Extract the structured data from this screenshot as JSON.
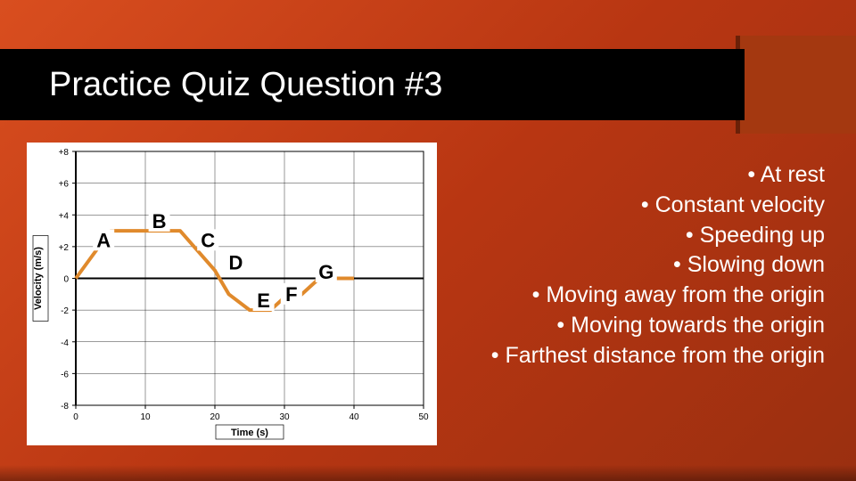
{
  "slide": {
    "title": "Practice Quiz Question #3",
    "background_gradient": [
      "#d94e1f",
      "#b83612",
      "#9a2f10"
    ],
    "accent_box_color": "#a43810",
    "title_bar_color": "#000000",
    "title_color": "#ffffff",
    "title_fontsize": 38
  },
  "chart": {
    "type": "line",
    "xlabel": "Time (s)",
    "ylabel": "Velocity (m/s)",
    "xlim": [
      0,
      50
    ],
    "ylim": [
      -8,
      8
    ],
    "xtick_step": 10,
    "ytick_step": 2,
    "xticks": [
      0,
      10,
      20,
      30,
      40,
      50
    ],
    "yticks_labels": [
      "+8",
      "+6",
      "+4",
      "+2",
      "0",
      "-2",
      "-4",
      "-6",
      "-8"
    ],
    "yticks_values": [
      8,
      6,
      4,
      2,
      0,
      -2,
      -4,
      -6,
      -8
    ],
    "background_color": "#ffffff",
    "axis_color": "#000000",
    "grid_color": "#000000",
    "label_fontsize": 11,
    "tick_fontsize": 10,
    "series": {
      "color": "#e08a2c",
      "width": 4,
      "points": [
        {
          "t": 0,
          "v": 0
        },
        {
          "t": 5,
          "v": 3
        },
        {
          "t": 15,
          "v": 3
        },
        {
          "t": 20,
          "v": 0.5
        },
        {
          "t": 22,
          "v": -1
        },
        {
          "t": 25,
          "v": -2
        },
        {
          "t": 28,
          "v": -2
        },
        {
          "t": 30,
          "v": -1.2
        },
        {
          "t": 32,
          "v": -1.2
        },
        {
          "t": 35,
          "v": 0
        },
        {
          "t": 40,
          "v": 0
        }
      ]
    },
    "region_labels": [
      {
        "label": "A",
        "t": 4,
        "v": 2.2
      },
      {
        "label": "B",
        "t": 12,
        "v": 3.4
      },
      {
        "label": "C",
        "t": 19,
        "v": 2.2
      },
      {
        "label": "D",
        "t": 23,
        "v": 0.8
      },
      {
        "label": "E",
        "t": 27,
        "v": -1.6
      },
      {
        "label": "F",
        "t": 31,
        "v": -1.2
      },
      {
        "label": "G",
        "t": 36,
        "v": 0.2
      }
    ],
    "region_label_style": {
      "fontsize": 22,
      "font_family": "Trebuchet MS",
      "text_color": "#000000",
      "box_fill": "#ffffff",
      "box_stroke": "none"
    }
  },
  "bullets": {
    "items": [
      "At rest",
      "Constant velocity",
      "Speeding up",
      "Slowing down",
      "Moving away from the origin",
      "Moving towards the origin",
      "Farthest distance from the origin"
    ],
    "color": "#ffffff",
    "fontsize": 25,
    "align": "right"
  }
}
